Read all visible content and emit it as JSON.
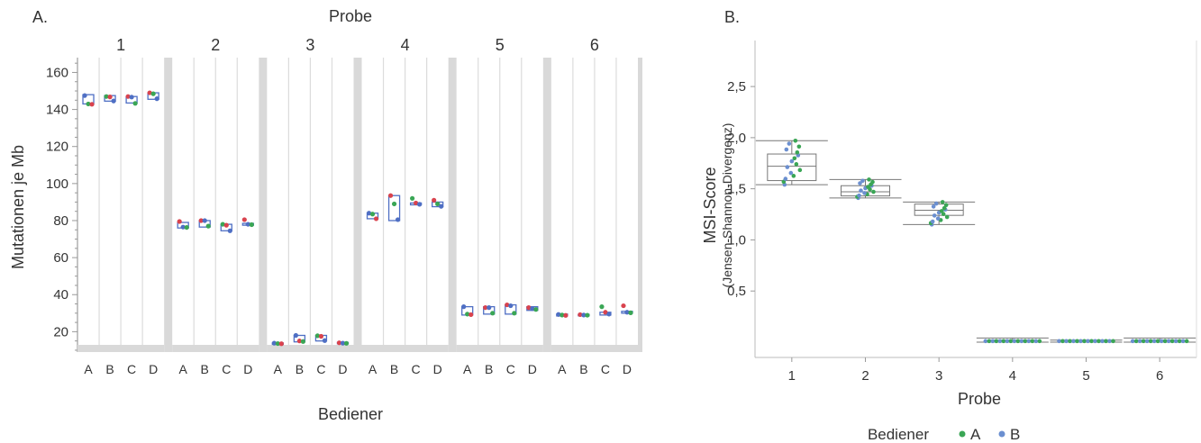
{
  "panel_a_letter": "A.",
  "panel_b_letter": "B.",
  "colors": {
    "green": "#3aa655",
    "blue": "#4f6fc4",
    "red": "#d9434e",
    "pointB": "#6b8fd0"
  },
  "chart_data": [
    {
      "type": "box",
      "title": "Probe",
      "ylabel": "Mutationen je Mb",
      "xlabel": "Bediener",
      "ylim": [
        9,
        168
      ],
      "yticks": [
        "20",
        "40",
        "60",
        "80",
        "100",
        "120",
        "140",
        "160"
      ],
      "facets": [
        "1",
        "2",
        "3",
        "4",
        "5",
        "6"
      ],
      "categories": [
        "A",
        "B",
        "C",
        "D"
      ],
      "groups": [
        [
          {
            "cat": "A",
            "box": [
              143,
              148
            ],
            "points": [
              {
                "v": 147.5,
                "c": "blue"
              },
              {
                "v": 143,
                "c": "green"
              },
              {
                "v": 142.8,
                "c": "red"
              }
            ]
          },
          {
            "cat": "B",
            "box": [
              144.5,
              147.5
            ],
            "points": [
              {
                "v": 147,
                "c": "green"
              },
              {
                "v": 146.8,
                "c": "red"
              },
              {
                "v": 144.6,
                "c": "blue"
              }
            ]
          },
          {
            "cat": "C",
            "box": [
              143.5,
              147
            ],
            "points": [
              {
                "v": 147,
                "c": "red"
              },
              {
                "v": 146.7,
                "c": "blue"
              },
              {
                "v": 143.3,
                "c": "green"
              }
            ]
          },
          {
            "cat": "D",
            "box": [
              145.5,
              149
            ],
            "points": [
              {
                "v": 149,
                "c": "red"
              },
              {
                "v": 148.5,
                "c": "green"
              },
              {
                "v": 145.8,
                "c": "blue"
              }
            ]
          }
        ],
        [
          {
            "cat": "A",
            "box": [
              76,
              79
            ],
            "points": [
              {
                "v": 79.5,
                "c": "red"
              },
              {
                "v": 76.5,
                "c": "blue"
              },
              {
                "v": 76.3,
                "c": "green"
              }
            ]
          },
          {
            "cat": "B",
            "box": [
              76.5,
              80
            ],
            "points": [
              {
                "v": 80,
                "c": "red"
              },
              {
                "v": 80,
                "c": "blue"
              },
              {
                "v": 77,
                "c": "green"
              }
            ]
          },
          {
            "cat": "C",
            "box": [
              74.5,
              78
            ],
            "points": [
              {
                "v": 78,
                "c": "green"
              },
              {
                "v": 77.5,
                "c": "red"
              },
              {
                "v": 74.5,
                "c": "blue"
              }
            ]
          },
          {
            "cat": "D",
            "box": [
              77.5,
              78.5
            ],
            "points": [
              {
                "v": 80.5,
                "c": "red"
              },
              {
                "v": 78,
                "c": "blue"
              },
              {
                "v": 77.8,
                "c": "green"
              }
            ]
          }
        ],
        [
          {
            "cat": "A",
            "box": [
              13.3,
              13.9
            ],
            "points": [
              {
                "v": 13.8,
                "c": "blue"
              },
              {
                "v": 13.6,
                "c": "green"
              },
              {
                "v": 13.5,
                "c": "red"
              }
            ]
          },
          {
            "cat": "B",
            "box": [
              14.5,
              18
            ],
            "points": [
              {
                "v": 18,
                "c": "blue"
              },
              {
                "v": 15,
                "c": "red"
              },
              {
                "v": 14.7,
                "c": "green"
              }
            ]
          },
          {
            "cat": "C",
            "box": [
              15,
              18
            ],
            "points": [
              {
                "v": 17.8,
                "c": "green"
              },
              {
                "v": 17.5,
                "c": "red"
              },
              {
                "v": 15.2,
                "c": "blue"
              }
            ]
          },
          {
            "cat": "D",
            "box": [
              13.5,
              14.2
            ],
            "points": [
              {
                "v": 14,
                "c": "red"
              },
              {
                "v": 13.8,
                "c": "blue"
              },
              {
                "v": 13.7,
                "c": "green"
              }
            ]
          }
        ],
        [
          {
            "cat": "A",
            "box": [
              81,
              84
            ],
            "points": [
              {
                "v": 84,
                "c": "blue"
              },
              {
                "v": 83.5,
                "c": "green"
              },
              {
                "v": 81,
                "c": "red"
              }
            ]
          },
          {
            "cat": "B",
            "box": [
              80,
              93.5
            ],
            "points": [
              {
                "v": 93.5,
                "c": "red"
              },
              {
                "v": 89,
                "c": "green"
              },
              {
                "v": 80.5,
                "c": "blue"
              }
            ]
          },
          {
            "cat": "C",
            "box": [
              88.5,
              89.5
            ],
            "points": [
              {
                "v": 92,
                "c": "green"
              },
              {
                "v": 89.5,
                "c": "red"
              },
              {
                "v": 88.8,
                "c": "blue"
              }
            ]
          },
          {
            "cat": "D",
            "box": [
              87.5,
              90
            ],
            "points": [
              {
                "v": 91,
                "c": "red"
              },
              {
                "v": 89,
                "c": "green"
              },
              {
                "v": 87.7,
                "c": "blue"
              }
            ]
          }
        ],
        [
          {
            "cat": "A",
            "box": [
              29,
              33.5
            ],
            "points": [
              {
                "v": 33.5,
                "c": "blue"
              },
              {
                "v": 29.5,
                "c": "green"
              },
              {
                "v": 29.2,
                "c": "red"
              }
            ]
          },
          {
            "cat": "B",
            "box": [
              29.5,
              33.5
            ],
            "points": [
              {
                "v": 33,
                "c": "red"
              },
              {
                "v": 33,
                "c": "blue"
              },
              {
                "v": 30,
                "c": "green"
              }
            ]
          },
          {
            "cat": "C",
            "box": [
              29.5,
              34.5
            ],
            "points": [
              {
                "v": 34.5,
                "c": "red"
              },
              {
                "v": 34,
                "c": "blue"
              },
              {
                "v": 30,
                "c": "green"
              }
            ]
          },
          {
            "cat": "D",
            "box": [
              31.5,
              33.5
            ],
            "points": [
              {
                "v": 33,
                "c": "red"
              },
              {
                "v": 32.5,
                "c": "blue"
              },
              {
                "v": 32,
                "c": "green"
              }
            ]
          }
        ],
        [
          {
            "cat": "A",
            "box": [
              28.5,
              29.5
            ],
            "points": [
              {
                "v": 29.3,
                "c": "blue"
              },
              {
                "v": 29,
                "c": "green"
              },
              {
                "v": 28.8,
                "c": "red"
              }
            ]
          },
          {
            "cat": "B",
            "box": [
              28.7,
              29.3
            ],
            "points": [
              {
                "v": 29.2,
                "c": "red"
              },
              {
                "v": 29,
                "c": "blue"
              },
              {
                "v": 28.9,
                "c": "green"
              }
            ]
          },
          {
            "cat": "C",
            "box": [
              29,
              30.5
            ],
            "points": [
              {
                "v": 33.5,
                "c": "green"
              },
              {
                "v": 30.5,
                "c": "red"
              },
              {
                "v": 29.5,
                "c": "blue"
              }
            ]
          },
          {
            "cat": "D",
            "box": [
              30,
              31
            ],
            "points": [
              {
                "v": 34,
                "c": "red"
              },
              {
                "v": 30.5,
                "c": "blue"
              },
              {
                "v": 30.2,
                "c": "green"
              }
            ]
          }
        ]
      ]
    },
    {
      "type": "box",
      "ylabel": "MSI-Score",
      "ylabel_sub": "(Jensen-Shannon-Divergenz)",
      "xlabel": "Probe",
      "ylim": [
        -0.15,
        2.95
      ],
      "yticks": [
        {
          "v": 0.5,
          "label": "0,5"
        },
        {
          "v": 1.0,
          "label": "1,0"
        },
        {
          "v": 1.5,
          "label": "1,5"
        },
        {
          "v": 2.0,
          "label": "2,0"
        },
        {
          "v": 2.5,
          "label": "2,5"
        }
      ],
      "categories": [
        "1",
        "2",
        "3",
        "4",
        "5",
        "6"
      ],
      "boxes": [
        {
          "cat": "1",
          "whisker": [
            1.54,
            1.97
          ],
          "q1": 1.58,
          "median": 1.72,
          "q3": 1.84
        },
        {
          "cat": "2",
          "whisker": [
            1.41,
            1.59
          ],
          "q1": 1.43,
          "median": 1.47,
          "q3": 1.53
        },
        {
          "cat": "3",
          "whisker": [
            1.15,
            1.37
          ],
          "q1": 1.24,
          "median": 1.29,
          "q3": 1.35
        },
        {
          "cat": "4",
          "whisker": [
            0.0,
            0.04
          ],
          "q1": 0.005,
          "median": 0.01,
          "q3": 0.02
        },
        {
          "cat": "5",
          "whisker": [
            0.0,
            0.02
          ],
          "q1": 0.005,
          "median": 0.01,
          "q3": 0.015
        },
        {
          "cat": "6",
          "whisker": [
            0.0,
            0.04
          ],
          "q1": 0.005,
          "median": 0.01,
          "q3": 0.02
        }
      ],
      "legend": {
        "title": "Bediener",
        "items": [
          {
            "label": "A",
            "c": "green"
          },
          {
            "label": "B",
            "c": "pointB"
          }
        ]
      }
    }
  ]
}
